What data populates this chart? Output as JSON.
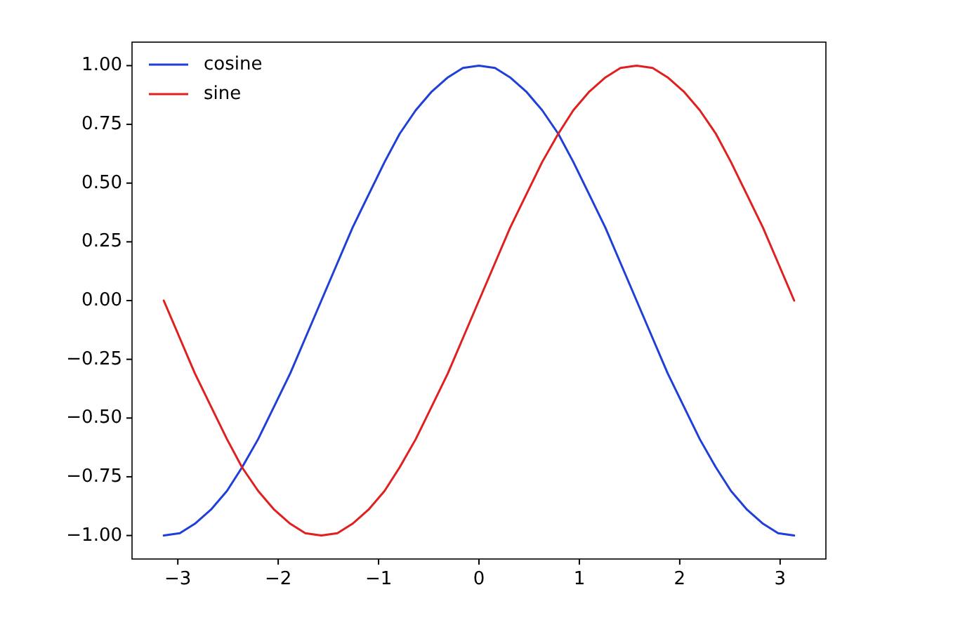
{
  "chart_data": {
    "type": "line",
    "x": [
      -3.14,
      -2.98,
      -2.83,
      -2.67,
      -2.51,
      -2.36,
      -2.2,
      -2.04,
      -1.88,
      -1.73,
      -1.57,
      -1.41,
      -1.26,
      -1.1,
      -0.94,
      -0.79,
      -0.63,
      -0.47,
      -0.31,
      -0.16,
      0,
      0.16,
      0.31,
      0.47,
      0.63,
      0.79,
      0.94,
      1.1,
      1.26,
      1.41,
      1.57,
      1.73,
      1.88,
      2.04,
      2.2,
      2.36,
      2.51,
      2.67,
      2.83,
      2.98,
      3.14
    ],
    "series": [
      {
        "name": "cosine",
        "color": "#1f3fd8",
        "values": [
          -1,
          -0.99,
          -0.95,
          -0.89,
          -0.81,
          -0.71,
          -0.59,
          -0.45,
          -0.31,
          -0.16,
          0,
          0.16,
          0.31,
          0.45,
          0.59,
          0.71,
          0.81,
          0.89,
          0.95,
          0.99,
          1,
          0.99,
          0.95,
          0.89,
          0.81,
          0.71,
          0.59,
          0.45,
          0.31,
          0.16,
          0,
          -0.16,
          -0.31,
          -0.45,
          -0.59,
          -0.71,
          -0.81,
          -0.89,
          -0.95,
          -0.99,
          -1
        ]
      },
      {
        "name": "sine",
        "color": "#e0201f",
        "values": [
          0,
          -0.16,
          -0.31,
          -0.45,
          -0.59,
          -0.71,
          -0.81,
          -0.89,
          -0.95,
          -0.99,
          -1,
          -0.99,
          -0.95,
          -0.89,
          -0.81,
          -0.71,
          -0.59,
          -0.45,
          -0.31,
          -0.16,
          0,
          0.16,
          0.31,
          0.45,
          0.59,
          0.71,
          0.81,
          0.89,
          0.95,
          0.99,
          1,
          0.99,
          0.95,
          0.89,
          0.81,
          0.71,
          0.59,
          0.45,
          0.31,
          0.16,
          0
        ]
      }
    ],
    "xlim": [
      -3.456,
      3.456
    ],
    "ylim": [
      -1.1,
      1.1
    ],
    "xticks": [
      {
        "value": -3,
        "label": "−3"
      },
      {
        "value": -2,
        "label": "−2"
      },
      {
        "value": -1,
        "label": "−1"
      },
      0,
      1,
      2,
      3
    ],
    "yticks": [
      {
        "value": -1,
        "label": "−1.00"
      },
      {
        "value": -0.75,
        "label": "−0.75"
      },
      {
        "value": -0.5,
        "label": "−0.50"
      },
      {
        "value": -0.25,
        "label": "−0.25"
      },
      {
        "value": 0,
        "label": "0.00"
      },
      {
        "value": 0.25,
        "label": "0.25"
      },
      {
        "value": 0.5,
        "label": "0.50"
      },
      {
        "value": 0.75,
        "label": "0.75"
      },
      {
        "value": 1,
        "label": "1.00"
      }
    ],
    "legend": "top left",
    "line_style": "solid",
    "marker": "none"
  }
}
